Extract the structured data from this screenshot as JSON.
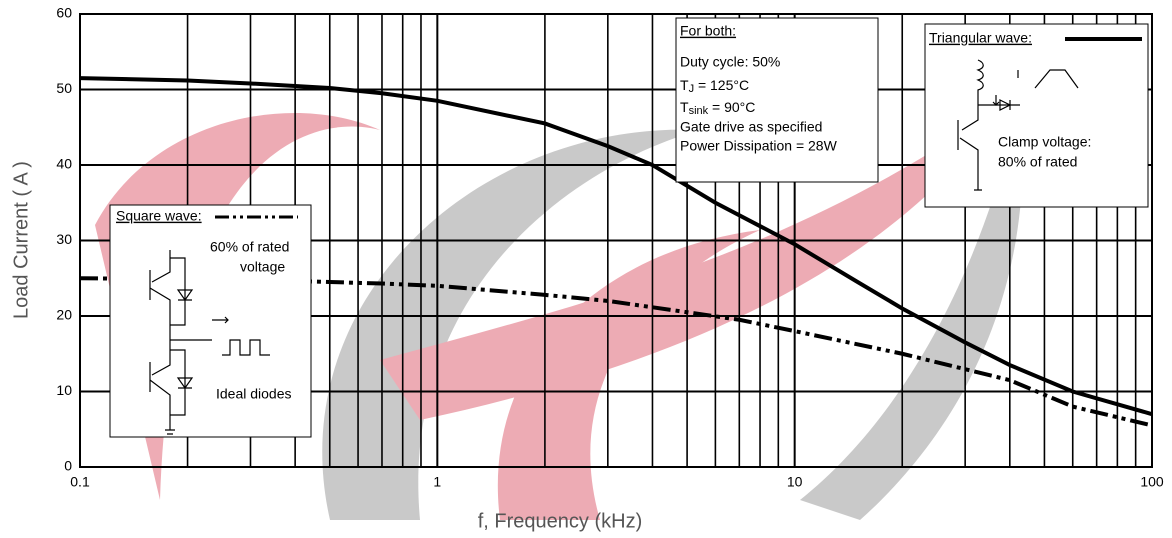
{
  "chart_data": {
    "type": "line",
    "x_label": "f, Frequency (kHz)",
    "y_label": "Load Current ( A )",
    "log_x": true,
    "grid": true,
    "minor_grid": true,
    "xlim": [
      0.1,
      100
    ],
    "xticks": [
      0.1,
      1,
      10,
      100
    ],
    "ylim": [
      0,
      60
    ],
    "yticks": [
      0,
      10,
      20,
      30,
      40,
      50,
      60
    ],
    "series": [
      {
        "name": "Triangular wave:",
        "color": "#000000",
        "style": "solid",
        "x": [
          0.1,
          0.2,
          0.3,
          0.5,
          0.7,
          1,
          2,
          3,
          4,
          6,
          10,
          15,
          20,
          30,
          40,
          60,
          100
        ],
        "values": [
          51.5,
          51.2,
          50.8,
          50.2,
          49.5,
          48.5,
          45.5,
          42.5,
          40,
          35,
          29.5,
          24.5,
          21,
          16.5,
          13.5,
          10,
          7
        ]
      },
      {
        "name": "Square wave:",
        "color": "#000000",
        "style": "dashdotdot",
        "x": [
          0.1,
          0.3,
          0.5,
          0.7,
          1,
          2,
          3,
          5,
          7,
          10,
          20,
          40,
          60,
          100
        ],
        "values": [
          25,
          24.8,
          24.5,
          24.3,
          24,
          22.8,
          22,
          20.5,
          19.5,
          18,
          15,
          11.5,
          8,
          5.5
        ]
      }
    ],
    "annotations": {
      "both": {
        "title": "For both:",
        "duty": "Duty cycle: 50%",
        "tj": {
          "main": "T",
          "sub": "J",
          "rest": " = 125°C"
        },
        "tsink": {
          "main": "T",
          "sub": "sink",
          "rest": " = 90°C"
        },
        "gate": "Gate drive as specified",
        "power": "Power Dissipation = 28W"
      },
      "square": {
        "line1": "60% of rated",
        "line2": "voltage",
        "diodes": "Ideal diodes"
      },
      "triangle": {
        "line1": "Clamp voltage:",
        "line2": "80% of rated"
      }
    }
  }
}
